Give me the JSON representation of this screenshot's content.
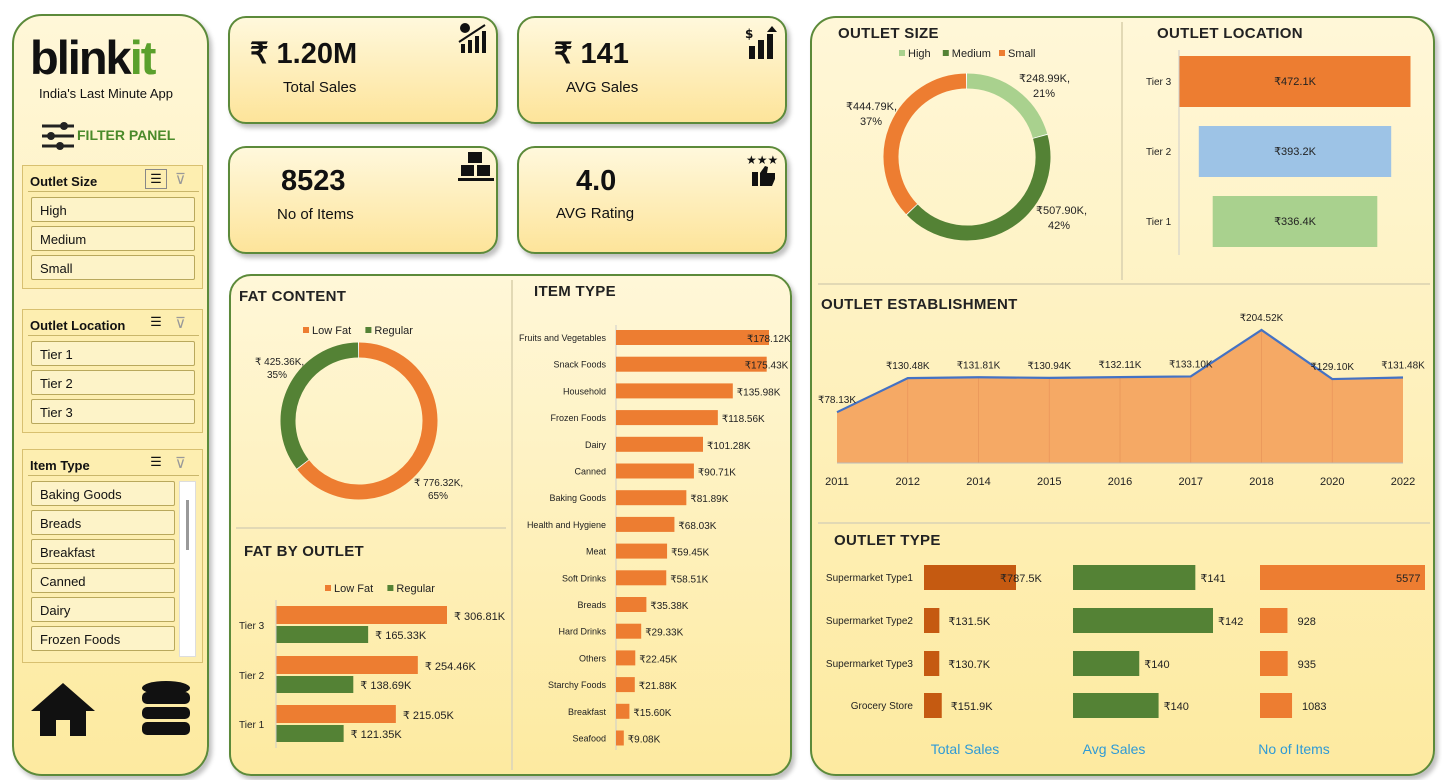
{
  "brand": {
    "logo": "blinkit",
    "tagline": "India's Last Minute App",
    "filter_panel": "FILTER PANEL"
  },
  "slicers": {
    "outlet_size": {
      "title": "Outlet Size",
      "items": [
        "High",
        "Medium",
        "Small"
      ]
    },
    "outlet_location": {
      "title": "Outlet Location",
      "items": [
        "Tier 1",
        "Tier 2",
        "Tier 3"
      ]
    },
    "item_type": {
      "title": "Item Type",
      "items": [
        "Baking Goods",
        "Breads",
        "Breakfast",
        "Canned",
        "Dairy",
        "Frozen Foods"
      ]
    }
  },
  "kpis": {
    "total_sales": {
      "value": "₹ 1.20M",
      "label": "Total Sales"
    },
    "avg_sales": {
      "value": "₹ 141",
      "label": "AVG Sales"
    },
    "no_items": {
      "value": "8523",
      "label": "No of Items"
    },
    "avg_rating": {
      "value": "4.0",
      "label": "AVG Rating"
    }
  },
  "titles": {
    "fat_content": "FAT CONTENT",
    "fat_by_outlet": "FAT BY OUTLET",
    "item_type": "ITEM TYPE",
    "outlet_size": "OUTLET SIZE",
    "outlet_location": "OUTLET LOCATION",
    "outlet_establishment": "OUTLET ESTABLISHMENT",
    "outlet_type": "OUTLET TYPE"
  },
  "colors": {
    "orange": "#ed7d31",
    "green": "#548235",
    "light_green": "#a9d18e",
    "blue": "#9dc3e6",
    "dark_orange": "#c55a11",
    "line": "#4472c4",
    "area": "#f4a460",
    "accent_text": "#2e9ad6",
    "brand_green": "#5aa02c"
  },
  "chart_data": [
    {
      "id": "fat_content",
      "type": "pie",
      "legend": [
        "Low Fat",
        "Regular"
      ],
      "slices": [
        {
          "name": "Low Fat",
          "value": 776.32,
          "label1": "₹ 776.32K,",
          "label2": "65%"
        },
        {
          "name": "Regular",
          "value": 425.36,
          "label1": "₹ 425.36K,",
          "label2": "35%"
        }
      ]
    },
    {
      "id": "fat_by_outlet",
      "type": "bar",
      "legend": [
        "Low Fat",
        "Regular"
      ],
      "categories": [
        "Tier 3",
        "Tier 2",
        "Tier 1"
      ],
      "series": [
        {
          "name": "Low Fat",
          "values": [
            306.81,
            254.46,
            215.05
          ],
          "labels": [
            "₹ 306.81K",
            "₹ 254.46K",
            "₹ 215.05K"
          ]
        },
        {
          "name": "Regular",
          "values": [
            165.33,
            138.69,
            121.35
          ],
          "labels": [
            "₹ 165.33K",
            "₹ 138.69K",
            "₹ 121.35K"
          ]
        }
      ]
    },
    {
      "id": "item_type",
      "type": "bar",
      "categories": [
        "Fruits and Vegetables",
        "Snack Foods",
        "Household",
        "Frozen Foods",
        "Dairy",
        "Canned",
        "Baking Goods",
        "Health and Hygiene",
        "Meat",
        "Soft Drinks",
        "Breads",
        "Hard Drinks",
        "Others",
        "Starchy Foods",
        "Breakfast",
        "Seafood"
      ],
      "values": [
        178.12,
        175.43,
        135.98,
        118.56,
        101.28,
        90.71,
        81.89,
        68.03,
        59.45,
        58.51,
        35.38,
        29.33,
        22.45,
        21.88,
        15.6,
        9.08
      ],
      "labels": [
        "₹178.12K",
        "₹175.43K",
        "₹135.98K",
        "₹118.56K",
        "₹101.28K",
        "₹90.71K",
        "₹81.89K",
        "₹68.03K",
        "₹59.45K",
        "₹58.51K",
        "₹35.38K",
        "₹29.33K",
        "₹22.45K",
        "₹21.88K",
        "₹15.60K",
        "₹9.08K"
      ]
    },
    {
      "id": "outlet_size",
      "type": "pie",
      "legend": [
        "High",
        "Medium",
        "Small"
      ],
      "slices": [
        {
          "name": "High",
          "value": 248.99,
          "label1": "₹248.99K,",
          "label2": "21%"
        },
        {
          "name": "Medium",
          "value": 507.9,
          "label1": "₹507.90K,",
          "label2": "42%"
        },
        {
          "name": "Small",
          "value": 444.79,
          "label1": "₹444.79K,",
          "label2": "37%"
        }
      ]
    },
    {
      "id": "outlet_location",
      "type": "bar",
      "categories": [
        "Tier 3",
        "Tier 2",
        "Tier 1"
      ],
      "values": [
        472.1,
        393.2,
        336.4
      ],
      "labels": [
        "₹472.1K",
        "₹393.2K",
        "₹336.4K"
      ]
    },
    {
      "id": "outlet_establishment",
      "type": "area",
      "x": [
        "2011",
        "2012",
        "2014",
        "2015",
        "2016",
        "2017",
        "2018",
        "2020",
        "2022"
      ],
      "values": [
        78.13,
        130.48,
        131.81,
        130.94,
        132.11,
        133.1,
        204.52,
        129.1,
        131.48
      ],
      "labels": [
        "₹78.13K",
        "₹130.48K",
        "₹131.81K",
        "₹130.94K",
        "₹132.11K",
        "₹133.10K",
        "₹204.52K",
        "₹129.10K",
        "₹131.48K"
      ]
    },
    {
      "id": "outlet_type",
      "type": "table",
      "categories": [
        "Supermarket Type1",
        "Supermarket Type2",
        "Supermarket Type3",
        "Grocery Store"
      ],
      "columns": [
        "Total Sales",
        "Avg Sales",
        "No of  Items"
      ],
      "total_sales": [
        787.5,
        131.5,
        130.7,
        151.9
      ],
      "total_labels": [
        "₹787.5K",
        "₹131.5K",
        "₹130.7K",
        "₹151.9K"
      ],
      "avg_sales": [
        141,
        142,
        140,
        140
      ],
      "avg_labels": [
        "₹141",
        "₹142",
        "₹140",
        "₹140"
      ],
      "items": [
        5577,
        928,
        935,
        1083
      ],
      "item_labels": [
        "5577",
        "928",
        "935",
        "1083"
      ]
    }
  ]
}
